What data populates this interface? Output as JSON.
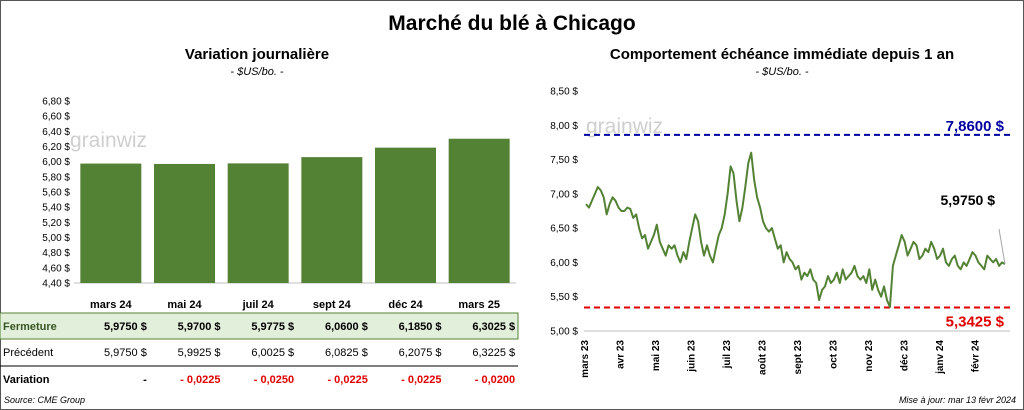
{
  "title": "Marché du blé à Chicago",
  "source": "Source: CME Group",
  "updated": "Mise à jour: mar 13 févr 2024",
  "watermark": "grainwiz",
  "colors": {
    "bar": "#548235",
    "line": "#548235",
    "high": "#0000a0",
    "low": "#e00000",
    "row_bg": "#e2efda",
    "neg": "#e00000"
  },
  "chart_data": [
    {
      "type": "bar",
      "title": "Variation journalière",
      "unit": "- $US/bo. -",
      "categories": [
        "mars 24",
        "mai 24",
        "juil 24",
        "sept 24",
        "déc 24",
        "mars 25"
      ],
      "values": [
        5.975,
        5.97,
        5.9775,
        6.06,
        6.185,
        6.3025
      ],
      "ylim": [
        4.4,
        6.8
      ],
      "yticks": [
        "4,40 $",
        "4,60 $",
        "4,80 $",
        "5,00 $",
        "5,20 $",
        "5,40 $",
        "5,60 $",
        "5,80 $",
        "6,00 $",
        "6,20 $",
        "6,40 $",
        "6,60 $",
        "6,80 $"
      ],
      "table": {
        "rows": [
          {
            "label": "Fermeture",
            "values": [
              "5,9750  $",
              "5,9700  $",
              "5,9775  $",
              "6,0600  $",
              "6,1850  $",
              "6,3025  $"
            ]
          },
          {
            "label": "Précédent",
            "values": [
              "5,9750  $",
              "5,9925  $",
              "6,0025  $",
              "6,0825  $",
              "6,2075  $",
              "6,3225  $"
            ]
          },
          {
            "label": "Variation",
            "values": [
              "-",
              "- 0,0225",
              "- 0,0250",
              "- 0,0225",
              "- 0,0225",
              "- 0,0200"
            ]
          }
        ]
      }
    },
    {
      "type": "line",
      "title": "Comportement  échéance immédiate depuis 1 an",
      "unit": "- $US/bo. -",
      "ylim": [
        5.0,
        8.5
      ],
      "yticks": [
        "5,00 $",
        "5,50 $",
        "6,00 $",
        "6,50 $",
        "7,00 $",
        "7,50 $",
        "8,00 $",
        "8,50 $"
      ],
      "xticks": [
        "mars 23",
        "avr 23",
        "mai 23",
        "juin 23",
        "juil 23",
        "août 23",
        "sept 23",
        "oct 23",
        "nov 23",
        "déc 23",
        "janv 24",
        "févr 24"
      ],
      "series": [
        {
          "values": [
            6.85,
            6.8,
            6.9,
            7.0,
            7.1,
            7.05,
            6.95,
            6.7,
            6.85,
            6.95,
            6.9,
            6.8,
            6.75,
            6.75,
            6.8,
            6.78,
            6.65,
            6.7,
            6.5,
            6.35,
            6.4,
            6.2,
            6.3,
            6.4,
            6.55,
            6.3,
            6.2,
            6.1,
            6.25,
            6.2,
            6.25,
            6.1,
            6.0,
            6.15,
            6.05,
            6.3,
            6.5,
            6.7,
            6.6,
            6.3,
            6.1,
            6.25,
            6.1,
            6.0,
            6.2,
            6.4,
            6.5,
            6.7,
            7.0,
            7.4,
            7.3,
            6.9,
            6.6,
            6.8,
            7.1,
            7.45,
            7.6,
            7.2,
            6.95,
            6.8,
            6.6,
            6.5,
            6.45,
            6.5,
            6.35,
            6.2,
            6.25,
            6.0,
            6.15,
            6.05,
            6.0,
            5.9,
            5.95,
            5.75,
            5.85,
            5.8,
            5.9,
            5.75,
            5.7,
            5.45,
            5.6,
            5.65,
            5.8,
            5.7,
            5.75,
            5.85,
            5.7,
            5.9,
            5.75,
            5.8,
            5.85,
            5.95,
            5.8,
            5.75,
            5.8,
            5.7,
            5.9,
            5.6,
            5.75,
            5.6,
            5.5,
            5.65,
            5.45,
            5.35,
            5.95,
            6.1,
            6.25,
            6.4,
            6.3,
            6.1,
            6.2,
            6.3,
            6.25,
            6.05,
            6.1,
            6.2,
            6.15,
            6.3,
            6.2,
            6.05,
            6.1,
            6.2,
            6.0,
            5.95,
            6.05,
            6.1,
            5.95,
            5.9,
            6.0,
            5.95,
            6.05,
            6.15,
            6.1,
            6.0,
            5.95,
            5.9,
            6.1,
            6.05,
            6.0,
            6.05,
            5.95,
            6.0,
            5.975
          ]
        }
      ],
      "high": {
        "value": 7.86,
        "label": "7,8600 $"
      },
      "low": {
        "value": 5.3425,
        "label": "5,3425 $"
      },
      "last": {
        "value": 5.975,
        "label": "5,9750 $"
      }
    }
  ]
}
